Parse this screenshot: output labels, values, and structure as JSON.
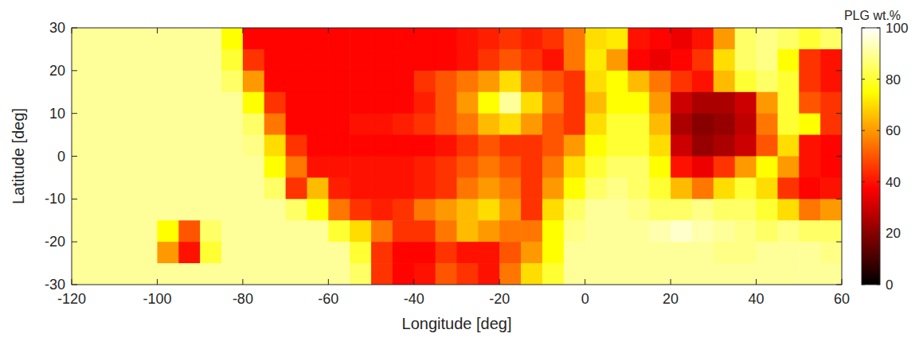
{
  "chart_data": {
    "type": "heatmap",
    "x_label": "Longitude [deg]",
    "y_label": "Latitude [deg]",
    "xlim": [
      -120,
      60
    ],
    "ylim": [
      -30,
      30
    ],
    "xticks": [
      -120,
      -100,
      -80,
      -60,
      -40,
      -20,
      0,
      20,
      40,
      60
    ],
    "yticks": [
      -30,
      -20,
      -10,
      0,
      10,
      20,
      30
    ],
    "x": [
      -117.5,
      -112.5,
      -107.5,
      -102.5,
      -97.5,
      -92.5,
      -87.5,
      -82.5,
      -77.5,
      -72.5,
      -67.5,
      -62.5,
      -57.5,
      -52.5,
      -47.5,
      -42.5,
      -37.5,
      -32.5,
      -27.5,
      -22.5,
      -17.5,
      -12.5,
      -7.5,
      -2.5,
      2.5,
      7.5,
      12.5,
      17.5,
      22.5,
      27.5,
      32.5,
      37.5,
      42.5,
      47.5,
      52.5,
      57.5
    ],
    "y": [
      27.5,
      22.5,
      17.5,
      12.5,
      7.5,
      2.5,
      -2.5,
      -7.5,
      -12.5,
      -17.5,
      -22.5,
      -27.5
    ],
    "cells": [
      [
        90,
        90,
        90,
        90,
        90,
        90,
        90,
        75,
        38,
        38,
        38,
        38,
        38,
        38,
        38,
        38,
        38,
        38,
        40,
        42,
        45,
        42,
        45,
        55,
        70,
        72,
        40,
        38,
        35,
        40,
        60,
        85,
        88,
        85,
        80,
        85
      ],
      [
        90,
        90,
        90,
        90,
        90,
        90,
        90,
        80,
        45,
        38,
        38,
        38,
        38,
        38,
        38,
        38,
        38,
        38,
        40,
        45,
        50,
        45,
        40,
        55,
        72,
        60,
        38,
        35,
        38,
        45,
        70,
        85,
        88,
        75,
        45,
        40
      ],
      [
        90,
        90,
        90,
        90,
        90,
        90,
        90,
        85,
        60,
        38,
        38,
        38,
        38,
        38,
        38,
        38,
        45,
        50,
        55,
        60,
        70,
        55,
        50,
        45,
        70,
        75,
        65,
        55,
        45,
        40,
        65,
        80,
        85,
        80,
        45,
        40
      ],
      [
        90,
        90,
        90,
        90,
        90,
        90,
        90,
        90,
        75,
        45,
        38,
        38,
        38,
        38,
        38,
        38,
        42,
        50,
        60,
        75,
        90,
        70,
        55,
        45,
        65,
        75,
        75,
        60,
        30,
        25,
        25,
        30,
        60,
        80,
        50,
        45
      ],
      [
        90,
        90,
        90,
        90,
        90,
        90,
        90,
        90,
        85,
        55,
        38,
        38,
        38,
        40,
        40,
        42,
        45,
        50,
        55,
        65,
        70,
        60,
        50,
        45,
        70,
        80,
        80,
        65,
        25,
        20,
        22,
        28,
        55,
        80,
        75,
        45
      ],
      [
        90,
        90,
        90,
        90,
        90,
        90,
        90,
        90,
        88,
        70,
        45,
        38,
        38,
        38,
        38,
        38,
        38,
        40,
        45,
        50,
        45,
        45,
        50,
        60,
        75,
        80,
        80,
        70,
        30,
        22,
        25,
        30,
        50,
        70,
        40,
        38
      ],
      [
        90,
        90,
        90,
        90,
        90,
        90,
        90,
        90,
        90,
        75,
        55,
        40,
        40,
        40,
        40,
        40,
        42,
        45,
        50,
        55,
        50,
        45,
        55,
        70,
        80,
        85,
        85,
        75,
        40,
        35,
        45,
        60,
        75,
        60,
        40,
        38
      ],
      [
        90,
        90,
        90,
        90,
        90,
        90,
        90,
        90,
        90,
        85,
        45,
        65,
        42,
        40,
        40,
        40,
        42,
        45,
        55,
        60,
        55,
        45,
        60,
        75,
        85,
        88,
        85,
        80,
        65,
        55,
        70,
        80,
        70,
        45,
        38,
        40
      ],
      [
        90,
        90,
        90,
        90,
        90,
        90,
        90,
        90,
        90,
        90,
        85,
        75,
        55,
        45,
        42,
        45,
        55,
        60,
        65,
        70,
        60,
        45,
        70,
        85,
        90,
        90,
        88,
        85,
        85,
        88,
        85,
        85,
        80,
        70,
        55,
        60
      ],
      [
        90,
        90,
        90,
        90,
        75,
        50,
        85,
        90,
        90,
        90,
        90,
        90,
        80,
        70,
        55,
        45,
        45,
        55,
        65,
        60,
        55,
        55,
        75,
        88,
        90,
        90,
        90,
        92,
        95,
        92,
        90,
        88,
        85,
        88,
        85,
        85
      ],
      [
        90,
        90,
        90,
        90,
        60,
        40,
        80,
        90,
        90,
        90,
        90,
        90,
        90,
        80,
        45,
        38,
        38,
        45,
        40,
        40,
        50,
        60,
        75,
        90,
        90,
        90,
        90,
        90,
        90,
        90,
        88,
        88,
        90,
        90,
        90,
        88
      ],
      [
        90,
        90,
        90,
        90,
        90,
        90,
        90,
        90,
        90,
        90,
        90,
        90,
        90,
        85,
        45,
        38,
        40,
        50,
        45,
        40,
        55,
        70,
        80,
        90,
        90,
        90,
        90,
        90,
        90,
        90,
        90,
        90,
        90,
        90,
        90,
        90
      ]
    ],
    "colorbar": {
      "label": "PLG wt.%",
      "range": [
        0,
        100
      ],
      "ticks": [
        0,
        20,
        40,
        60,
        80,
        100
      ]
    }
  }
}
